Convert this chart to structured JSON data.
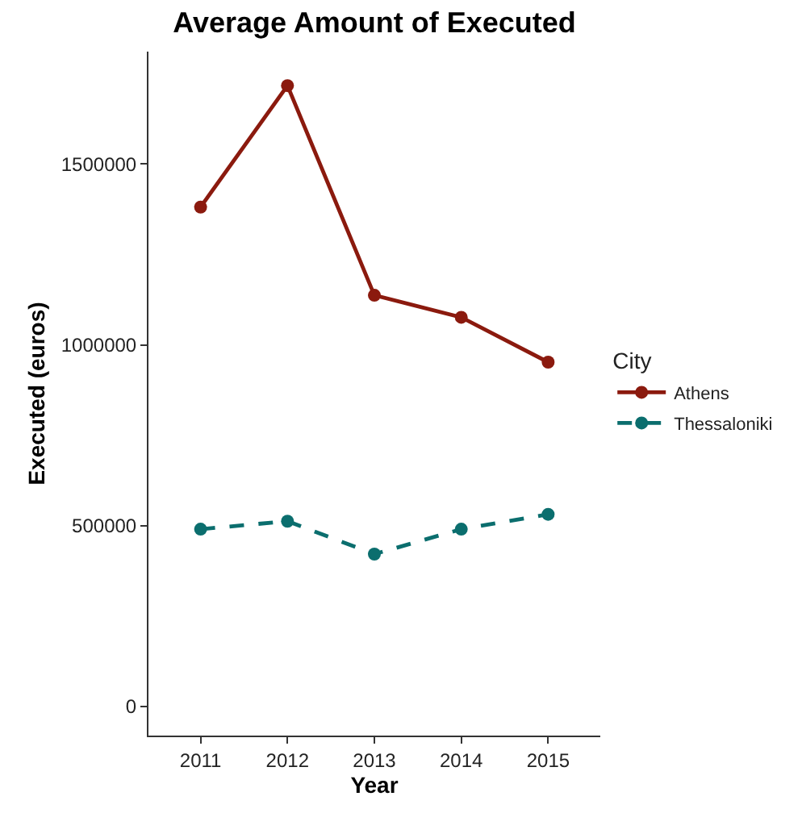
{
  "chart_data": {
    "type": "line",
    "title": "Average Amount of Executed",
    "xlabel": "Year",
    "ylabel": "Executed (euros)",
    "legend_title": "City",
    "x": [
      2011,
      2012,
      2013,
      2014,
      2015
    ],
    "series": [
      {
        "name": "Athens",
        "color": "#8b1a0e",
        "values": [
          1381000,
          1717000,
          1137000,
          1076000,
          952000
        ],
        "line_style": "solid"
      },
      {
        "name": "Thessaloniki",
        "color": "#0b6e6e",
        "values": [
          490000,
          512000,
          421000,
          490000,
          531000
        ],
        "line_style": "dashed"
      }
    ],
    "xlim": [
      2010.4,
      2015.6
    ],
    "xticks": [
      2011,
      2012,
      2013,
      2014,
      2015
    ],
    "ylim": [
      -81000,
      1811000
    ],
    "yticks": [
      0,
      500000,
      1000000,
      1500000
    ],
    "marker": "circle",
    "legend": "right"
  }
}
